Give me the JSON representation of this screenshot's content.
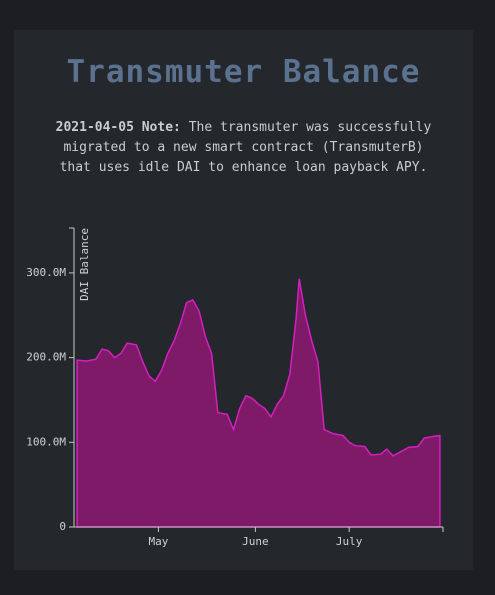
{
  "chart_data": {
    "type": "area",
    "title": "Transmuter Balance",
    "note_label": "2021-04-05 Note:",
    "note": "The transmuter was successfully migrated to a new smart contract (TransmuterB) that uses idle DAI to enhance loan payback APY.",
    "y_label": "DAI Balance",
    "color": "#7e1a68",
    "line_color": "#d61fbf",
    "x": [
      "2021-04-05",
      "2021-04-08",
      "2021-04-11",
      "2021-04-13",
      "2021-04-15",
      "2021-04-17",
      "2021-04-19",
      "2021-04-21",
      "2021-04-24",
      "2021-04-26",
      "2021-04-28",
      "2021-04-30",
      "2021-05-02",
      "2021-05-04",
      "2021-05-06",
      "2021-05-08",
      "2021-05-10",
      "2021-05-12",
      "2021-05-14",
      "2021-05-16",
      "2021-05-18",
      "2021-05-20",
      "2021-05-23",
      "2021-05-25",
      "2021-05-27",
      "2021-05-29",
      "2021-05-31",
      "2021-06-02",
      "2021-06-04",
      "2021-06-06",
      "2021-06-08",
      "2021-06-10",
      "2021-06-12",
      "2021-06-14",
      "2021-06-15",
      "2021-06-17",
      "2021-06-19",
      "2021-06-21",
      "2021-06-23",
      "2021-06-26",
      "2021-06-29",
      "2021-07-01",
      "2021-07-03",
      "2021-07-06",
      "2021-07-08",
      "2021-07-11",
      "2021-07-13",
      "2021-07-15",
      "2021-07-18",
      "2021-07-20",
      "2021-07-23",
      "2021-07-25",
      "2021-07-28",
      "2021-07-30"
    ],
    "values": [
      197000000,
      196000000,
      198000000,
      210000000,
      208000000,
      200000000,
      205000000,
      217000000,
      215000000,
      195000000,
      178000000,
      172000000,
      185000000,
      205000000,
      220000000,
      240000000,
      265000000,
      268000000,
      255000000,
      225000000,
      205000000,
      135000000,
      133000000,
      115000000,
      140000000,
      155000000,
      152000000,
      145000000,
      140000000,
      130000000,
      145000000,
      155000000,
      180000000,
      245000000,
      293000000,
      250000000,
      220000000,
      195000000,
      115000000,
      110000000,
      108000000,
      100000000,
      96000000,
      95000000,
      85000000,
      86000000,
      92000000,
      84000000,
      90000000,
      94000000,
      95000000,
      105000000,
      107000000,
      108000000
    ],
    "xlim": [
      "2021-04-04",
      "2021-07-31"
    ],
    "xticks": [
      {
        "value": "2021-05-01",
        "label": "May"
      },
      {
        "value": "2021-06-01",
        "label": "June"
      },
      {
        "value": "2021-07-01",
        "label": "July"
      }
    ],
    "ylim": [
      0,
      353000000
    ],
    "yticks": [
      {
        "value": 0,
        "label": "0"
      },
      {
        "value": 100000000,
        "label": "100.0M"
      },
      {
        "value": 200000000,
        "label": "200.0M"
      },
      {
        "value": 300000000,
        "label": "300.0M"
      }
    ]
  }
}
